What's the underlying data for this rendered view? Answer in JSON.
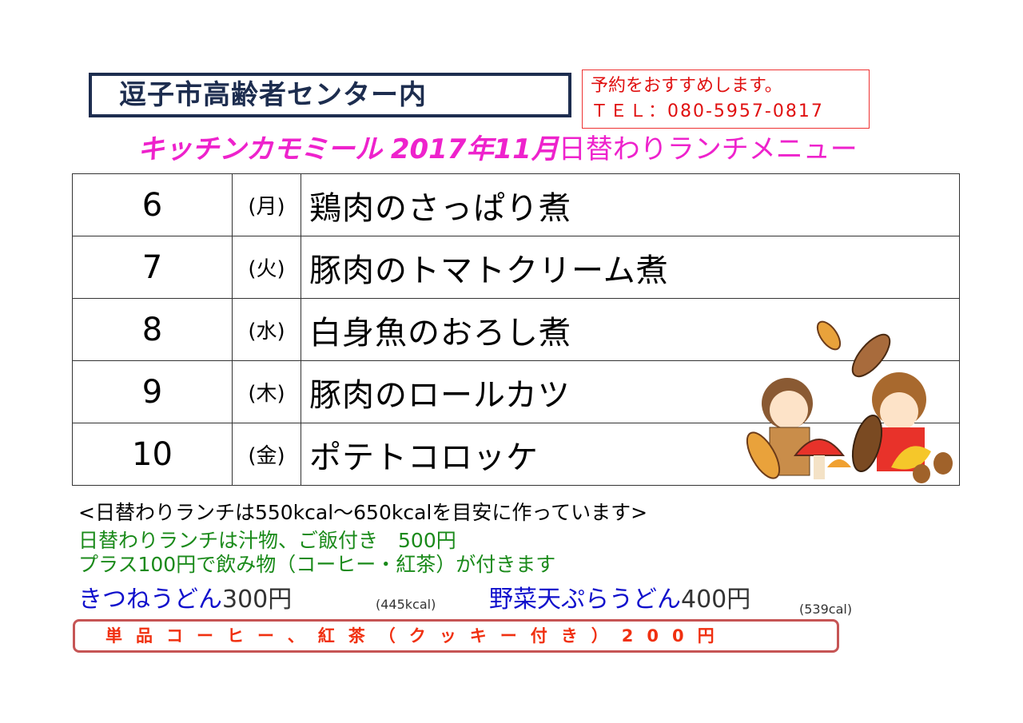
{
  "header": {
    "venue": "逗子市高齢者センター内",
    "reserve_note": "予約をおすすめします。",
    "tel": "ＴＥＬ：080-5957-0817"
  },
  "title": {
    "shop": "キッチンカモミール",
    "month": "2017年11月",
    "subtitle": "日替わりランチメニュー"
  },
  "menu": [
    {
      "day": "6",
      "weekday": "(月)",
      "dish": "鶏肉のさっぱり煮"
    },
    {
      "day": "7",
      "weekday": "(火)",
      "dish": "豚肉のトマトクリーム煮"
    },
    {
      "day": "8",
      "weekday": "(水)",
      "dish": "白身魚のおろし煮"
    },
    {
      "day": "9",
      "weekday": "(木)",
      "dish": "豚肉のロールカツ"
    },
    {
      "day": "10",
      "weekday": "(金)",
      "dish": "ポテトコロッケ"
    }
  ],
  "notes": {
    "calorie": "<日替わりランチは550kcal〜650kcalを目安に作っています>",
    "lunch_price": "日替わりランチは汁物、ご飯付き　500円",
    "drink": "プラス100円で飲み物（コーヒー・紅茶）が付きます",
    "udon1_name": "きつねうどん",
    "udon1_price": "300円",
    "udon1_kcal": "(445kcal)",
    "udon2_name": "野菜天ぷらうどん",
    "udon2_price": "400円",
    "udon2_kcal": "(539cal)",
    "single": "単品コーヒー、紅茶（クッキー付き）200円"
  },
  "colors": {
    "title_pink": "#ee22cc",
    "green": "#1a8a1a",
    "blue": "#1010cc",
    "red": "#e01010"
  }
}
